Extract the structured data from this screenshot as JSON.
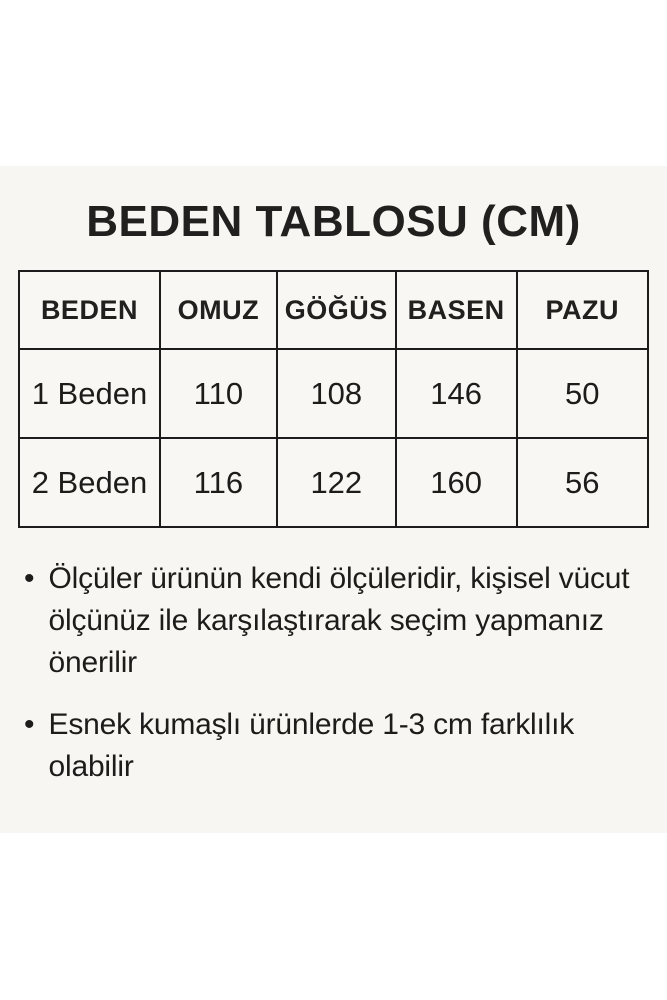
{
  "page": {
    "title": "BEDEN TABLOSU (CM)"
  },
  "size_table": {
    "headers": [
      "BEDEN",
      "OMUZ",
      "GÖĞÜS",
      "BASEN",
      "PAZU"
    ],
    "rows": [
      {
        "beden": "1 Beden",
        "omuz": "110",
        "gogus": "108",
        "basen": "146",
        "pazu": "50"
      },
      {
        "beden": "2 Beden",
        "omuz": "116",
        "gogus": "122",
        "basen": "160",
        "pazu": "56"
      }
    ]
  },
  "notes": {
    "bullet_glyph": "•",
    "items": [
      "Ölçüler ürünün kendi ölçüleridir, kişisel vücut ölçünüz ile karşılaştırarak seçim yapmanız önerilir",
      "Esnek kumaşlı ürünlerde 1-3 cm farklılık olabilir"
    ]
  },
  "colors": {
    "page_background": "#FFFFFF",
    "panel_background": "#F7F6F2",
    "text": "#1E1C1B",
    "table_border": "#1C1C1C"
  }
}
